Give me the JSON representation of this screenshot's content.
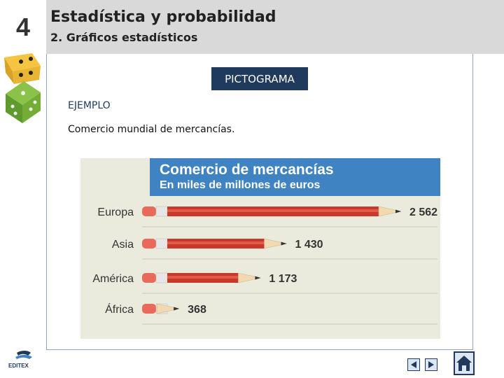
{
  "header": {
    "unit_number": "4",
    "title": "Estadística y probabilidad",
    "subtitle": "2. Gráficos estadísticos"
  },
  "main": {
    "section_label": "PICTOGRAMA",
    "example_label": "EJEMPLO",
    "description": "Comercio mundial de mercancías."
  },
  "chart_data": {
    "type": "bar",
    "orientation": "horizontal",
    "title": "Comercio de mercancías",
    "subtitle": "En miles de millones de euros",
    "categories": [
      "Europa",
      "Asia",
      "América",
      "África"
    ],
    "values": [
      2562,
      1430,
      1173,
      368
    ],
    "value_labels": [
      "2 562",
      "1 430",
      "1 173",
      "368"
    ],
    "mark": "pencil",
    "colors": {
      "title_band": "#3f83c2",
      "background": "#ebebdd",
      "pencil_body": "#c8392b"
    }
  },
  "footer": {
    "logo_text": "EDITEX",
    "icons": [
      "prev-arrow-icon",
      "next-arrow-icon",
      "home-icon"
    ]
  }
}
